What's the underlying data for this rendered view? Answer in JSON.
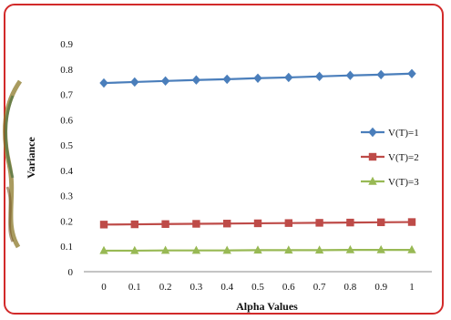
{
  "chart_data": {
    "type": "line",
    "xlabel": "Alpha Values",
    "ylabel": "Variance",
    "x": [
      0,
      0.1,
      0.2,
      0.3,
      0.4,
      0.5,
      0.6,
      0.7,
      0.8,
      0.9,
      1
    ],
    "xticks": [
      "0",
      "0.1",
      "0.2",
      "0.3",
      "0.4",
      "0.5",
      "0.6",
      "0.7",
      "0.8",
      "0.9",
      "1"
    ],
    "yticks": [
      "0",
      "0.1",
      "0.2",
      "0.3",
      "0.4",
      "0.5",
      "0.6",
      "0.7",
      "0.8",
      "0.9"
    ],
    "ylim": [
      0,
      0.9
    ],
    "grid": false,
    "legend_position": "right",
    "series": [
      {
        "name": "V(T)=1",
        "color": "#4a7ebb",
        "marker": "diamond",
        "values": [
          0.745,
          0.749,
          0.753,
          0.757,
          0.76,
          0.764,
          0.767,
          0.771,
          0.775,
          0.778,
          0.782
        ]
      },
      {
        "name": "V(T)=2",
        "color": "#be4b48",
        "marker": "square",
        "values": [
          0.186,
          0.187,
          0.188,
          0.189,
          0.19,
          0.191,
          0.192,
          0.193,
          0.194,
          0.195,
          0.196
        ]
      },
      {
        "name": "V(T)=3",
        "color": "#98b954",
        "marker": "triangle",
        "values": [
          0.083,
          0.083,
          0.084,
          0.084,
          0.084,
          0.085,
          0.085,
          0.085,
          0.086,
          0.086,
          0.086
        ]
      }
    ]
  }
}
